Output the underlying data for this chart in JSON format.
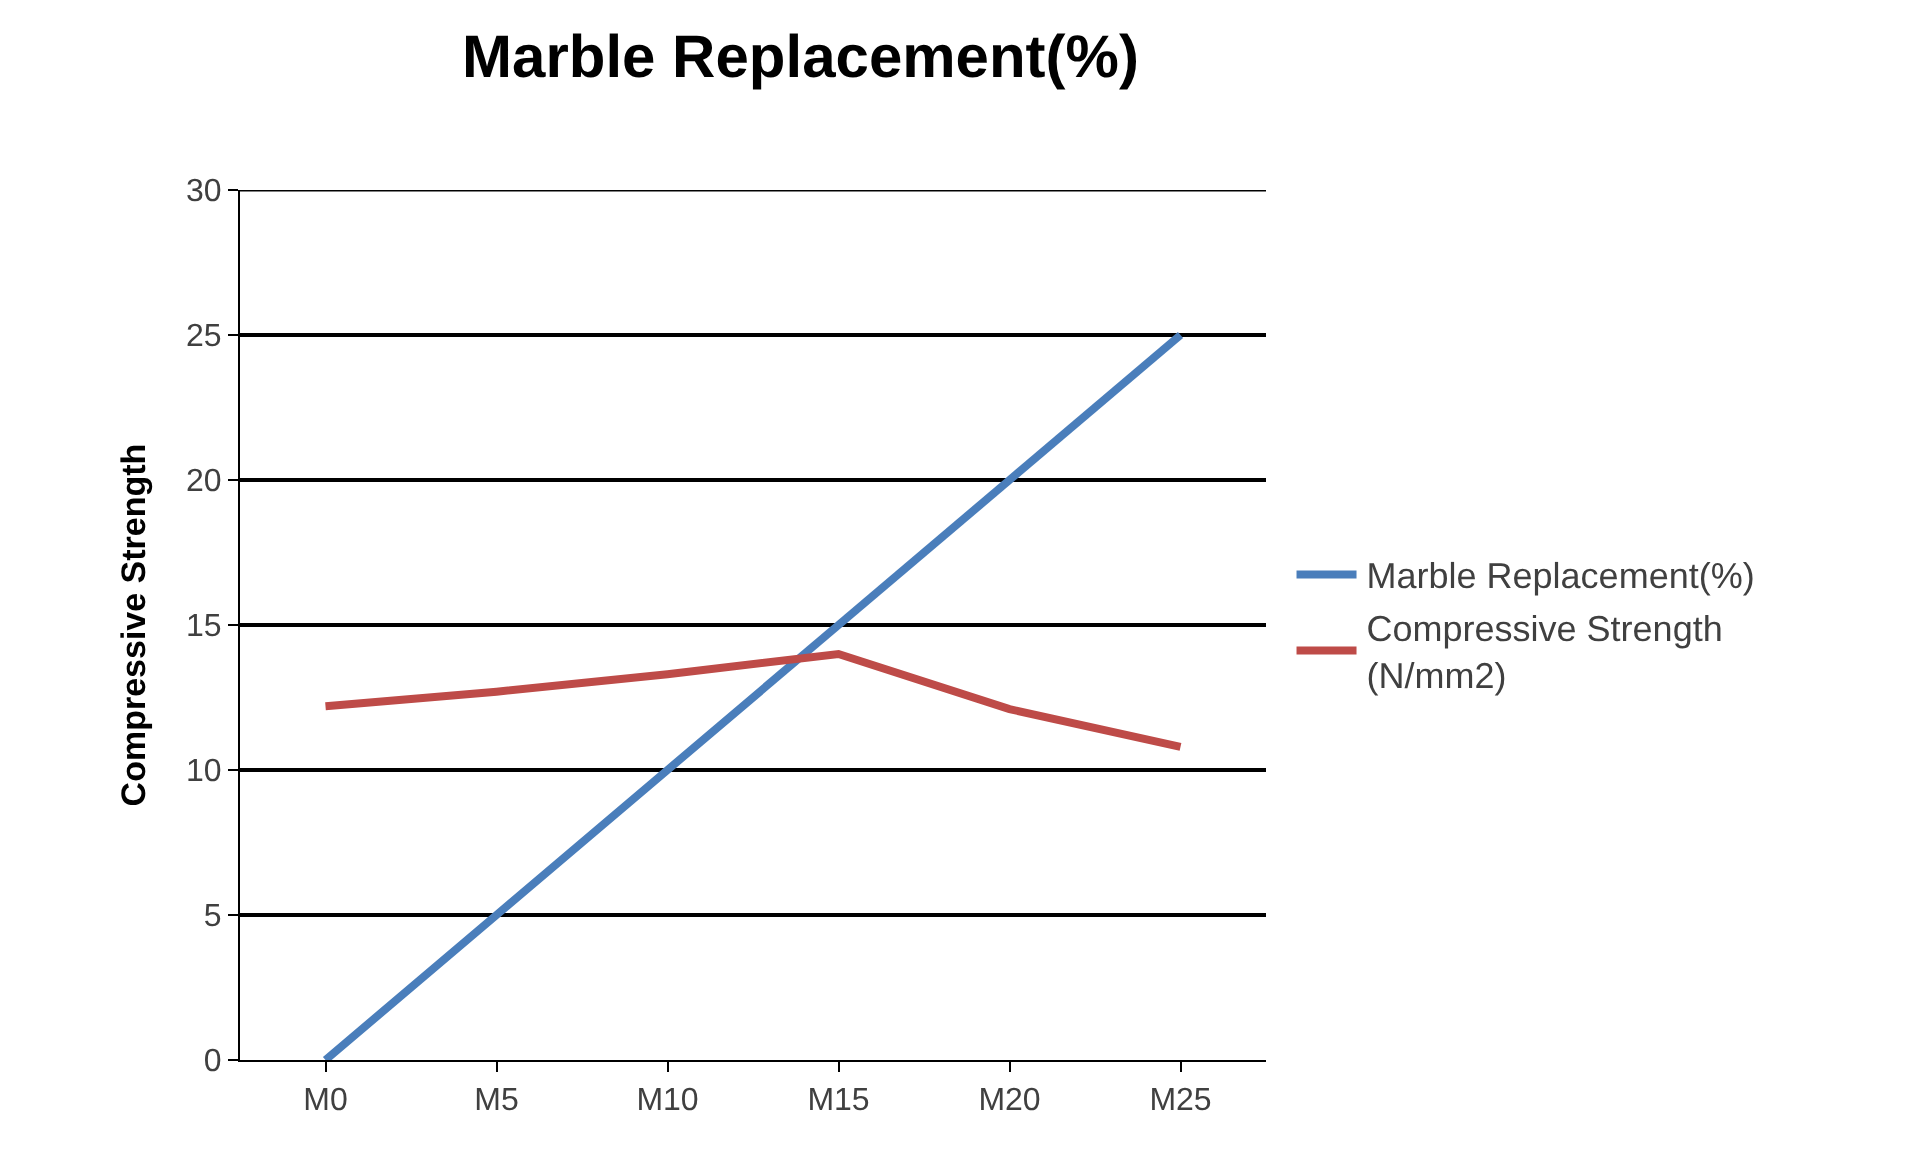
{
  "chart_data": {
    "type": "line",
    "title": "Marble Replacement(%)",
    "ylabel": "Compressive Strength",
    "categories": [
      "M0",
      "M5",
      "M10",
      "M15",
      "M20",
      "M25"
    ],
    "series": [
      {
        "name": "Marble Replacement(%)",
        "color": "#4a7ebb",
        "values": [
          0,
          5,
          10,
          15,
          20,
          25
        ]
      },
      {
        "name": "Compressive Strength (N/mm2)",
        "color": "#be4b48",
        "values": [
          12.2,
          12.7,
          13.3,
          14.0,
          12.1,
          10.8
        ]
      }
    ],
    "ylim": [
      0,
      30
    ],
    "yticks": [
      0,
      5,
      10,
      15,
      20,
      25,
      30
    ],
    "grid": "y",
    "legend": "right",
    "marker": "none",
    "line_style": "solid"
  }
}
